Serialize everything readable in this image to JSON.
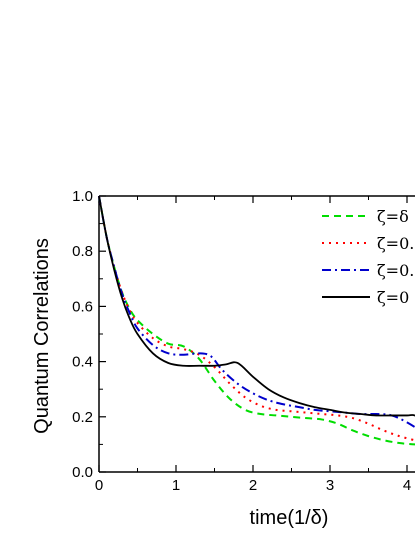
{
  "chart_data": {
    "type": "line",
    "xlabel": "time(1/δ)",
    "ylabel": "Quantum Correlations",
    "xlim": [
      0,
      4.2
    ],
    "ylim": [
      0,
      1.0
    ],
    "xticks": [
      "0",
      "1",
      "2",
      "3",
      "4"
    ],
    "yticks": [
      "0.0",
      "0.2",
      "0.4",
      "0.6",
      "0.8",
      "1.0"
    ],
    "grid": false,
    "legend_position": "top-right",
    "series": [
      {
        "name": "ζ=δ",
        "color": "#00dd00",
        "dash": "dashed",
        "x": [
          0,
          0.1,
          0.2,
          0.3,
          0.4,
          0.5,
          0.7,
          0.9,
          1.1,
          1.3,
          1.5,
          1.7,
          1.9,
          2.1,
          2.3,
          2.5,
          2.7,
          2.9,
          3.1,
          3.3,
          3.5,
          3.7,
          3.9,
          4.1,
          4.2
        ],
        "y": [
          1.0,
          0.85,
          0.74,
          0.65,
          0.59,
          0.55,
          0.5,
          0.465,
          0.455,
          0.41,
          0.33,
          0.265,
          0.225,
          0.21,
          0.205,
          0.2,
          0.195,
          0.19,
          0.175,
          0.15,
          0.13,
          0.115,
          0.105,
          0.1,
          0.1
        ]
      },
      {
        "name": "ζ=0.",
        "color": "#ff0000",
        "dash": "dotted",
        "x": [
          0,
          0.1,
          0.2,
          0.3,
          0.4,
          0.5,
          0.7,
          0.9,
          1.1,
          1.3,
          1.5,
          1.7,
          1.9,
          2.1,
          2.3,
          2.5,
          2.7,
          2.9,
          3.1,
          3.3,
          3.5,
          3.7,
          3.9,
          4.1,
          4.2
        ],
        "y": [
          1.0,
          0.85,
          0.74,
          0.65,
          0.585,
          0.54,
          0.485,
          0.455,
          0.445,
          0.425,
          0.38,
          0.32,
          0.27,
          0.24,
          0.225,
          0.22,
          0.215,
          0.21,
          0.205,
          0.195,
          0.175,
          0.15,
          0.13,
          0.115,
          0.11
        ]
      },
      {
        "name": "ζ=0.",
        "color": "#0000cc",
        "dash": "dashdot",
        "x": [
          0,
          0.1,
          0.2,
          0.3,
          0.4,
          0.5,
          0.7,
          0.9,
          1.1,
          1.3,
          1.45,
          1.6,
          1.8,
          2.0,
          2.2,
          2.4,
          2.6,
          2.8,
          3.0,
          3.2,
          3.4,
          3.6,
          3.8,
          4.0,
          4.2
        ],
        "y": [
          1.0,
          0.85,
          0.74,
          0.645,
          0.575,
          0.52,
          0.46,
          0.43,
          0.425,
          0.43,
          0.42,
          0.37,
          0.32,
          0.285,
          0.26,
          0.245,
          0.235,
          0.225,
          0.22,
          0.215,
          0.21,
          0.21,
          0.205,
          0.18,
          0.145
        ]
      },
      {
        "name": "ζ=0",
        "color": "#000000",
        "dash": "solid",
        "x": [
          0,
          0.1,
          0.2,
          0.3,
          0.4,
          0.5,
          0.7,
          0.9,
          1.1,
          1.3,
          1.5,
          1.65,
          1.8,
          2.0,
          2.2,
          2.4,
          2.6,
          2.8,
          3.0,
          3.2,
          3.4,
          3.6,
          3.8,
          4.0,
          4.1,
          4.2
        ],
        "y": [
          1.0,
          0.85,
          0.73,
          0.63,
          0.555,
          0.5,
          0.43,
          0.395,
          0.385,
          0.385,
          0.385,
          0.39,
          0.395,
          0.345,
          0.3,
          0.27,
          0.25,
          0.235,
          0.225,
          0.215,
          0.21,
          0.205,
          0.205,
          0.205,
          0.205,
          0.18
        ]
      }
    ]
  }
}
